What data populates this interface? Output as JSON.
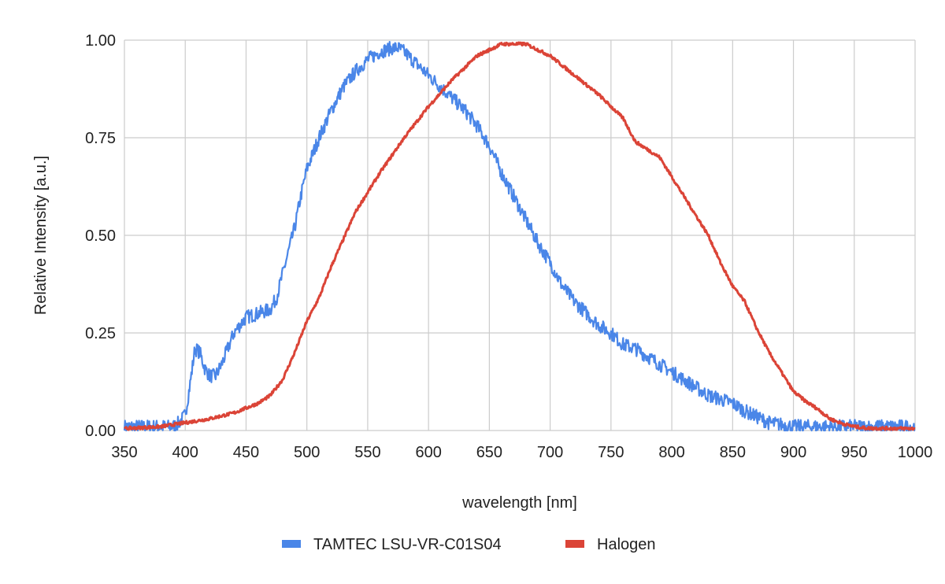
{
  "chart_data": {
    "type": "line",
    "title": "",
    "xlabel": "wavelength [nm]",
    "ylabel": "Relative Intensity [a.u.]",
    "xlim": [
      350,
      1000
    ],
    "ylim": [
      0,
      1
    ],
    "x_ticks": [
      350,
      400,
      450,
      500,
      550,
      600,
      650,
      700,
      750,
      800,
      850,
      900,
      950,
      1000
    ],
    "y_ticks": [
      "0.00",
      "0.25",
      "0.50",
      "0.75",
      "1.00"
    ],
    "grid": true,
    "legend_position": "bottom",
    "series": [
      {
        "name": "TAMTEC LSU-VR-C01S04",
        "color": "#4a86e8",
        "noise": 0.018,
        "x": [
          350,
          380,
          390,
          395,
          400,
          404,
          408,
          412,
          416,
          420,
          425,
          430,
          435,
          440,
          450,
          460,
          470,
          475,
          480,
          485,
          490,
          495,
          500,
          510,
          520,
          530,
          540,
          550,
          560,
          570,
          575,
          580,
          590,
          600,
          610,
          620,
          630,
          640,
          650,
          660,
          670,
          680,
          690,
          700,
          710,
          720,
          730,
          740,
          750,
          760,
          770,
          780,
          790,
          800,
          810,
          820,
          830,
          840,
          850,
          860,
          870,
          880,
          890,
          900,
          920,
          950,
          1000
        ],
        "y": [
          0.01,
          0.01,
          0.01,
          0.02,
          0.04,
          0.12,
          0.21,
          0.2,
          0.16,
          0.14,
          0.14,
          0.17,
          0.21,
          0.25,
          0.29,
          0.3,
          0.31,
          0.34,
          0.4,
          0.46,
          0.52,
          0.6,
          0.67,
          0.75,
          0.82,
          0.88,
          0.92,
          0.95,
          0.97,
          0.98,
          0.98,
          0.97,
          0.94,
          0.91,
          0.88,
          0.85,
          0.82,
          0.78,
          0.73,
          0.66,
          0.6,
          0.54,
          0.48,
          0.43,
          0.37,
          0.33,
          0.3,
          0.27,
          0.25,
          0.22,
          0.21,
          0.19,
          0.17,
          0.15,
          0.13,
          0.11,
          0.09,
          0.08,
          0.07,
          0.05,
          0.035,
          0.02,
          0.015,
          0.01,
          0.01,
          0.01,
          0.01
        ]
      },
      {
        "name": "Halogen",
        "color": "#db4437",
        "noise": 0.004,
        "x": [
          350,
          380,
          400,
          420,
          440,
          460,
          470,
          480,
          490,
          500,
          510,
          520,
          540,
          560,
          580,
          600,
          620,
          640,
          660,
          680,
          700,
          720,
          740,
          760,
          770,
          780,
          790,
          800,
          810,
          820,
          830,
          840,
          850,
          860,
          870,
          880,
          890,
          900,
          910,
          920,
          930,
          940,
          950,
          960,
          1000
        ],
        "y": [
          0.005,
          0.01,
          0.02,
          0.03,
          0.045,
          0.07,
          0.09,
          0.13,
          0.2,
          0.28,
          0.34,
          0.42,
          0.56,
          0.66,
          0.75,
          0.83,
          0.9,
          0.96,
          0.99,
          0.99,
          0.96,
          0.91,
          0.86,
          0.8,
          0.74,
          0.72,
          0.7,
          0.65,
          0.6,
          0.55,
          0.5,
          0.43,
          0.37,
          0.33,
          0.26,
          0.2,
          0.15,
          0.1,
          0.075,
          0.055,
          0.03,
          0.018,
          0.01,
          0.006,
          0.005
        ]
      }
    ]
  }
}
